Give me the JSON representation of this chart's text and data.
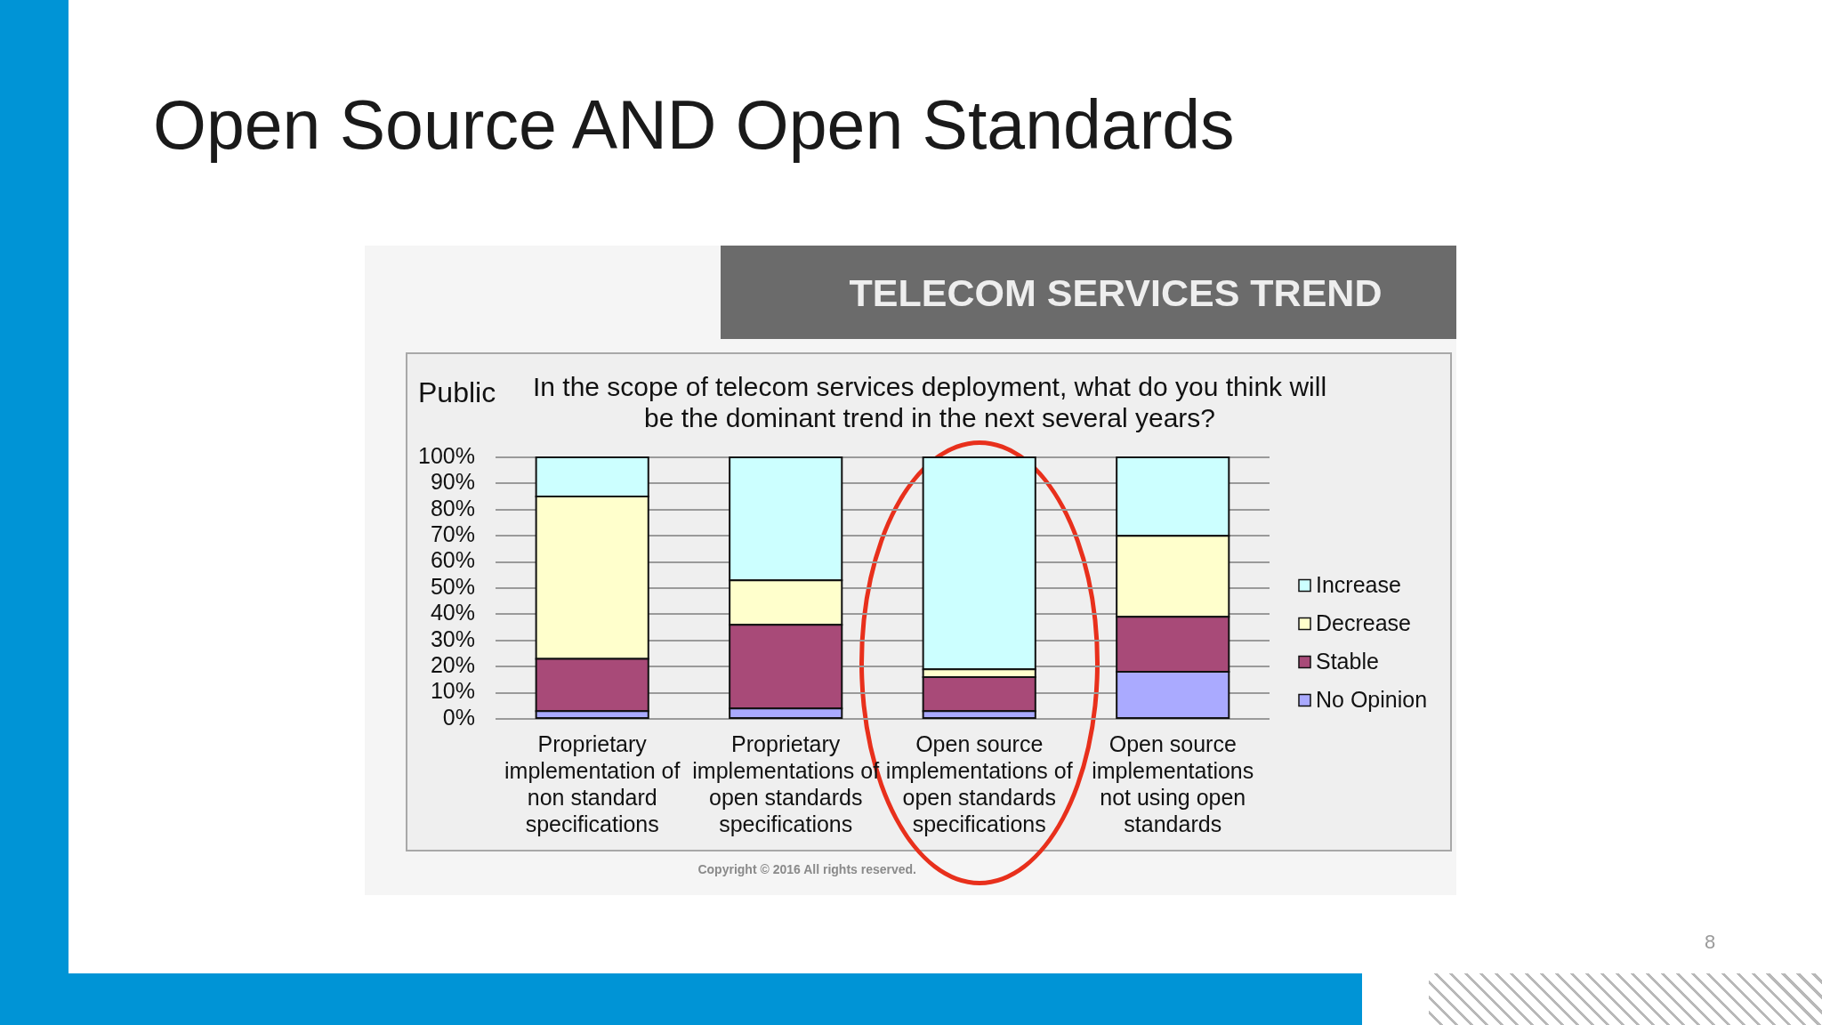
{
  "chart_data": {
    "type": "bar",
    "stacked": true,
    "title": "Open Source AND Open Standards",
    "subtitle": "TELECOM SERVICES TREND",
    "annotations": [
      "Public",
      "In the scope of telecom services deployment, what do you think will be the dominant trend in the next several years?",
      "Copyright © 2016 All rights reserved.",
      "8"
    ],
    "categories": [
      "Proprietary implementation of non standard specifications",
      "Proprietary implementations of open standards specifications",
      "Open source implementations of open standards specifications",
      "Open source implementations not using open standards"
    ],
    "series": [
      {
        "name": "No Opinion",
        "color": "#aaaaff",
        "values": [
          3,
          4,
          3,
          18
        ]
      },
      {
        "name": "Stable",
        "color": "#a84a78",
        "values": [
          20,
          32,
          13,
          21
        ]
      },
      {
        "name": "Decrease",
        "color": "#ffffcc",
        "values": [
          62,
          17,
          3,
          31
        ]
      },
      {
        "name": "Increase",
        "color": "#ccffff",
        "values": [
          15,
          47,
          81,
          30
        ]
      }
    ],
    "ylim": [
      0,
      100
    ],
    "yticks": [
      {
        "value": 0,
        "label": "0%"
      },
      {
        "value": 10,
        "label": "10%"
      },
      {
        "value": 20,
        "label": "20%"
      },
      {
        "value": 30,
        "label": "30%"
      },
      {
        "value": 40,
        "label": "40%"
      },
      {
        "value": 50,
        "label": "50%"
      },
      {
        "value": 60,
        "label": "60%"
      },
      {
        "value": 70,
        "label": "70%"
      },
      {
        "value": 80,
        "label": "80%"
      },
      {
        "value": 90,
        "label": "90%"
      },
      {
        "value": 100,
        "label": "100%"
      }
    ],
    "grid": "y",
    "legend": "right"
  }
}
